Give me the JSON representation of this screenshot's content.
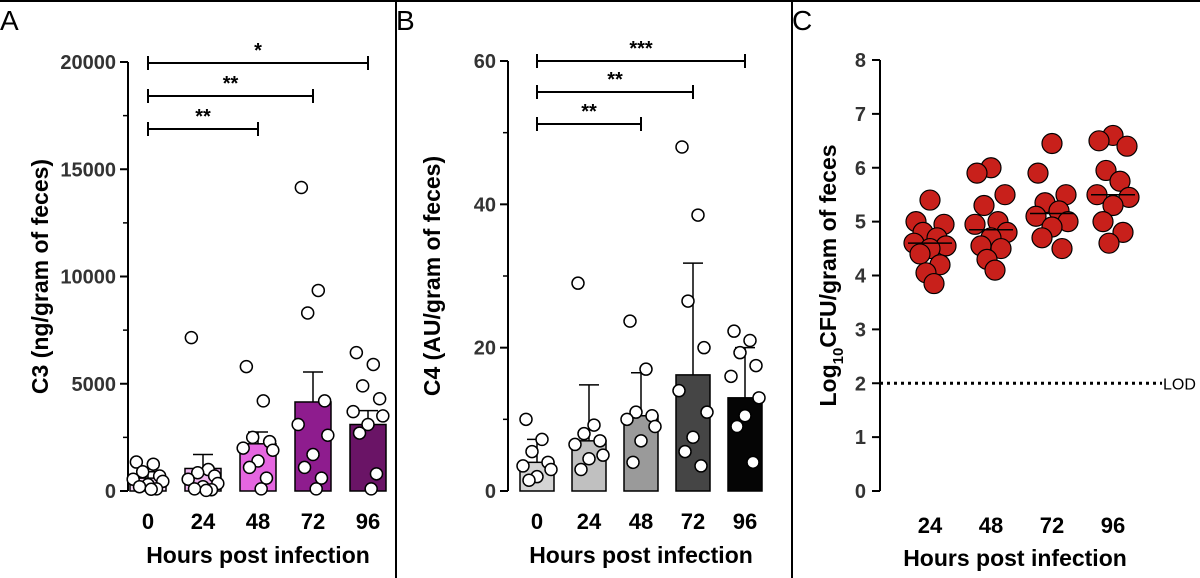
{
  "chart_data": [
    {
      "panel": "A",
      "type": "bar",
      "categories": [
        "0",
        "24",
        "48",
        "72",
        "96"
      ],
      "xlabel": "Hours post infection",
      "ylabel": "C3 (ng/gram of feces)",
      "ylim": [
        0,
        20000
      ],
      "yticks": [
        0,
        5000,
        10000,
        15000,
        20000
      ],
      "means": [
        600,
        1050,
        2200,
        4150,
        3100
      ],
      "sem": [
        300,
        650,
        550,
        1400,
        650
      ],
      "bar_colors": [
        "#f4d8f4",
        "#f0b6f0",
        "#e566e0",
        "#8e1c8e",
        "#6a1466"
      ],
      "points": [
        [
          1350,
          1250,
          900,
          700,
          550,
          450,
          300,
          200,
          100,
          80
        ],
        [
          7150,
          1000,
          850,
          700,
          550,
          350,
          200,
          100,
          60,
          30
        ],
        [
          5800,
          4200,
          2500,
          2300,
          2000,
          1900,
          1400,
          1100,
          600,
          100
        ],
        [
          14150,
          9350,
          8300,
          4200,
          3100,
          2600,
          1700,
          1100,
          600,
          100
        ],
        [
          6450,
          5900,
          4900,
          4300,
          3700,
          3500,
          3100,
          2700,
          800,
          100
        ]
      ],
      "significance": [
        {
          "from": "0",
          "to": "48",
          "label": "**"
        },
        {
          "from": "0",
          "to": "72",
          "label": "**"
        },
        {
          "from": "0",
          "to": "96",
          "label": "*"
        }
      ]
    },
    {
      "panel": "B",
      "type": "bar",
      "categories": [
        "0",
        "24",
        "48",
        "72",
        "96"
      ],
      "xlabel": "Hours post infection",
      "ylabel": "C4 (AU/gram of feces)",
      "ylim": [
        0,
        60
      ],
      "yticks": [
        0,
        20,
        40,
        60
      ],
      "means": [
        4,
        7,
        10.5,
        16.2,
        13
      ],
      "sd": [
        3.2,
        7.8,
        6,
        15.6,
        7
      ],
      "bar_colors": [
        "#d4d4d4",
        "#c0c0c0",
        "#9a9a9a",
        "#454545",
        "#050505"
      ],
      "points": [
        [
          10,
          7.2,
          5.5,
          4,
          3.5,
          3,
          2,
          1.5
        ],
        [
          29,
          9.2,
          8,
          7,
          6.5,
          5,
          4.5,
          3
        ],
        [
          23.7,
          17,
          11,
          10.5,
          10,
          9,
          7,
          4
        ],
        [
          48,
          38.5,
          26.5,
          20,
          14,
          11,
          7.5,
          5.5,
          3.5
        ],
        [
          22.3,
          21,
          19.3,
          17.5,
          16,
          13,
          10.5,
          9,
          4
        ]
      ],
      "significance": [
        {
          "from": "0",
          "to": "48",
          "label": "**"
        },
        {
          "from": "0",
          "to": "72",
          "label": "**"
        },
        {
          "from": "0",
          "to": "96",
          "label": "***"
        }
      ]
    },
    {
      "panel": "C",
      "type": "scatter",
      "categories": [
        "24",
        "48",
        "72",
        "96"
      ],
      "xlabel": "Hours post infection",
      "ylabel_prefix": "Log",
      "ylabel_sub": "10",
      "ylabel_suffix": "CFU/gram of feces",
      "ylim": [
        0,
        8
      ],
      "yticks": [
        0,
        1,
        2,
        3,
        4,
        5,
        6,
        7,
        8
      ],
      "lod": 2,
      "lod_label": "LOD",
      "medians": [
        4.6,
        4.85,
        5.15,
        5.5
      ],
      "point_color": "#c8201b",
      "points": [
        [
          5.4,
          5.0,
          4.95,
          4.8,
          4.7,
          4.6,
          4.55,
          4.5,
          4.4,
          4.2,
          4.05,
          3.85
        ],
        [
          6.0,
          5.9,
          5.5,
          5.3,
          5.0,
          4.95,
          4.8,
          4.7,
          4.55,
          4.5,
          4.3,
          4.1
        ],
        [
          6.45,
          5.9,
          5.5,
          5.35,
          5.2,
          5.1,
          5.0,
          4.9,
          4.7,
          4.5
        ],
        [
          6.6,
          6.5,
          6.4,
          5.95,
          5.75,
          5.5,
          5.45,
          5.3,
          5.0,
          4.8,
          4.6
        ]
      ]
    }
  ]
}
